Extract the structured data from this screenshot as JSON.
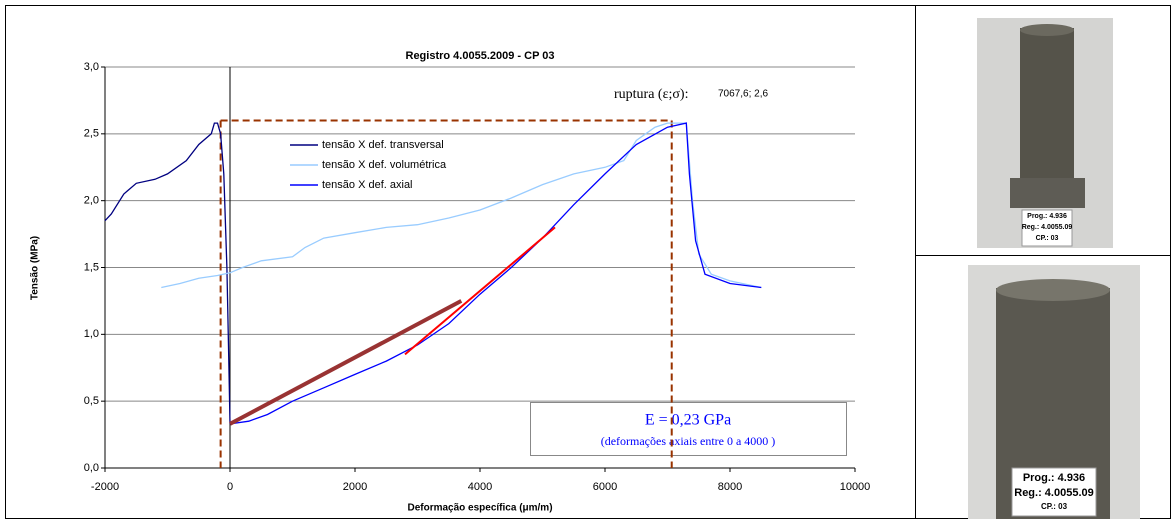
{
  "chart_data": {
    "type": "line",
    "title": "Registro 4.0055.2009 - CP 03",
    "x_label": "Deformação específica (μm/m)",
    "y_label": "Tensão (MPa)",
    "xlim": [
      -2000,
      10000
    ],
    "ylim": [
      0,
      3
    ],
    "xticks": [
      -2000,
      0,
      2000,
      4000,
      6000,
      8000,
      10000
    ],
    "yticks": [
      {
        "value": 0,
        "label": "0,0"
      },
      {
        "value": 0.5,
        "label": "0,5"
      },
      {
        "value": 1,
        "label": "1,0"
      },
      {
        "value": 1.5,
        "label": "1,5"
      },
      {
        "value": 2,
        "label": "2,0"
      },
      {
        "value": 2.5,
        "label": "2,5"
      },
      {
        "value": 3,
        "label": "3,0"
      }
    ],
    "grid": true,
    "series": [
      {
        "name": "tensão X def. transversal",
        "color": "#000080",
        "x": [
          -2000,
          -1900,
          -1700,
          -1500,
          -1200,
          -1000,
          -700,
          -500,
          -300,
          -250,
          -200,
          -150,
          -100,
          -50,
          -20,
          0
        ],
        "values": [
          1.85,
          1.9,
          2.05,
          2.13,
          2.16,
          2.2,
          2.3,
          2.42,
          2.5,
          2.58,
          2.58,
          2.5,
          2.2,
          1.5,
          0.8,
          0.33
        ]
      },
      {
        "name": "tensão X def. volumétrica",
        "color": "#99ccff",
        "x": [
          -1100,
          -800,
          -500,
          -200,
          0,
          200,
          500,
          1000,
          1200,
          1500,
          2000,
          2500,
          3000,
          3500,
          4000,
          4500,
          5000,
          5500,
          6000,
          6300,
          6500,
          6800,
          7000,
          7300,
          7400,
          7500,
          7700,
          8000,
          8300,
          8500
        ],
        "values": [
          1.35,
          1.38,
          1.42,
          1.44,
          1.46,
          1.5,
          1.55,
          1.58,
          1.65,
          1.72,
          1.76,
          1.8,
          1.82,
          1.87,
          1.93,
          2.02,
          2.12,
          2.2,
          2.25,
          2.3,
          2.45,
          2.55,
          2.58,
          2.58,
          2.0,
          1.6,
          1.45,
          1.4,
          1.37,
          1.35
        ]
      },
      {
        "name": "tensão X def. axial",
        "color": "#0000ff",
        "x": [
          0,
          300,
          600,
          1000,
          1500,
          2000,
          2500,
          3000,
          3500,
          4000,
          4500,
          5000,
          5500,
          6000,
          6500,
          7000,
          7300,
          7350,
          7450,
          7600,
          8000,
          8500
        ],
        "values": [
          0.33,
          0.35,
          0.4,
          0.5,
          0.6,
          0.7,
          0.8,
          0.92,
          1.08,
          1.3,
          1.5,
          1.72,
          1.97,
          2.2,
          2.42,
          2.55,
          2.58,
          2.2,
          1.7,
          1.45,
          1.38,
          1.35
        ]
      }
    ],
    "fit_lines": [
      {
        "color": "#ff0000",
        "x": [
          2800,
          5200
        ],
        "values": [
          0.85,
          1.8
        ]
      },
      {
        "color": "#993333",
        "x": [
          0,
          3700
        ],
        "values": [
          0.33,
          1.25
        ]
      }
    ],
    "guide_x": [
      -150,
      7067.6
    ],
    "guide_y": 2.6,
    "guide_color": "#993300",
    "rupture_label": "ruptura (ε;σ):",
    "rupture_value_label": "7067,6; 2,6",
    "modulus_text": "E = 0,23 GPa",
    "modulus_note": "(deformações axiais entre 0 a 4000 )"
  },
  "photos": [
    {
      "lines": [
        "Prog.: 4.936",
        "Reg.: 4.0055.09",
        "CP.: 03"
      ]
    },
    {
      "lines": [
        "Prog.: 4.936",
        "Reg.: 4.0055.09",
        "CP.: 03"
      ]
    }
  ]
}
